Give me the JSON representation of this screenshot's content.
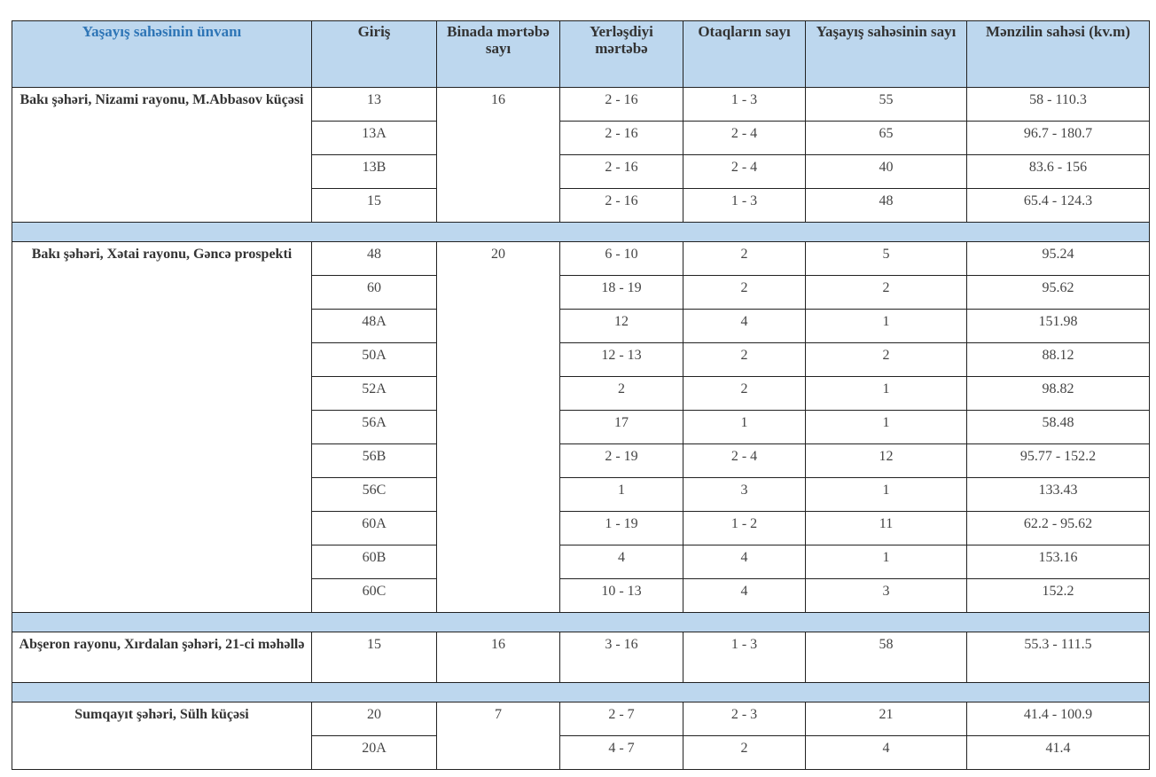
{
  "headers": [
    "Yaşayış sahəsinin ünvanı",
    "Giriş",
    "Binada mərtəbə sayı",
    "Yerləşdiyi mərtəbə",
    "Otaqların sayı",
    "Yaşayış sahəsinin sayı",
    "Mənzilin sahəsi (kv.m)"
  ],
  "colors": {
    "header_bg": "#bdd7ee",
    "header_first_text": "#2e75b6"
  },
  "groups": [
    {
      "address": "Bakı şəhəri, Nizami rayonu, M.Abbasov küçəsi",
      "floors": "16",
      "rows": [
        {
          "entry": "13",
          "floor": "2 - 16",
          "rooms": "1 - 3",
          "count": "55",
          "area": "58 - 110.3"
        },
        {
          "entry": "13A",
          "floor": "2 - 16",
          "rooms": "2 - 4",
          "count": "65",
          "area": "96.7 - 180.7"
        },
        {
          "entry": "13B",
          "floor": "2 - 16",
          "rooms": "2 - 4",
          "count": "40",
          "area": "83.6 - 156"
        },
        {
          "entry": "15",
          "floor": "2 - 16",
          "rooms": "1 - 3",
          "count": "48",
          "area": "65.4 - 124.3"
        }
      ]
    },
    {
      "address": "Bakı şəhəri, Xətai rayonu, Gəncə prospekti",
      "floors": "20",
      "rows": [
        {
          "entry": "48",
          "floor": "6 - 10",
          "rooms": "2",
          "count": "5",
          "area": "95.24"
        },
        {
          "entry": "60",
          "floor": "18 - 19",
          "rooms": "2",
          "count": "2",
          "area": "95.62"
        },
        {
          "entry": "48A",
          "floor": "12",
          "rooms": "4",
          "count": "1",
          "area": "151.98"
        },
        {
          "entry": "50A",
          "floor": "12 - 13",
          "rooms": "2",
          "count": "2",
          "area": "88.12"
        },
        {
          "entry": "52A",
          "floor": "2",
          "rooms": "2",
          "count": "1",
          "area": "98.82"
        },
        {
          "entry": "56A",
          "floor": "17",
          "rooms": "1",
          "count": "1",
          "area": "58.48"
        },
        {
          "entry": "56B",
          "floor": "2 - 19",
          "rooms": "2 - 4",
          "count": "12",
          "area": "95.77 - 152.2"
        },
        {
          "entry": "56C",
          "floor": "1",
          "rooms": "3",
          "count": "1",
          "area": "133.43"
        },
        {
          "entry": "60A",
          "floor": "1 - 19",
          "rooms": "1 - 2",
          "count": "11",
          "area": "62.2 - 95.62"
        },
        {
          "entry": "60B",
          "floor": "4",
          "rooms": "4",
          "count": "1",
          "area": "153.16"
        },
        {
          "entry": "60C",
          "floor": "10 - 13",
          "rooms": "4",
          "count": "3",
          "area": "152.2"
        }
      ]
    },
    {
      "address": "Abşeron rayonu, Xırdalan şəhəri, 21-ci məhəllə",
      "floors": "16",
      "rows": [
        {
          "entry": "15",
          "floor": "3 - 16",
          "rooms": "1 - 3",
          "count": "58",
          "area": "55.3 - 111.5"
        }
      ]
    },
    {
      "address": "Sumqayıt şəhəri, Sülh küçəsi",
      "floors": "7",
      "rows": [
        {
          "entry": "20",
          "floor": "2 - 7",
          "rooms": "2 - 3",
          "count": "21",
          "area": "41.4 - 100.9"
        },
        {
          "entry": "20A",
          "floor": "4 - 7",
          "rooms": "2",
          "count": "4",
          "area": "41.4"
        }
      ]
    }
  ]
}
